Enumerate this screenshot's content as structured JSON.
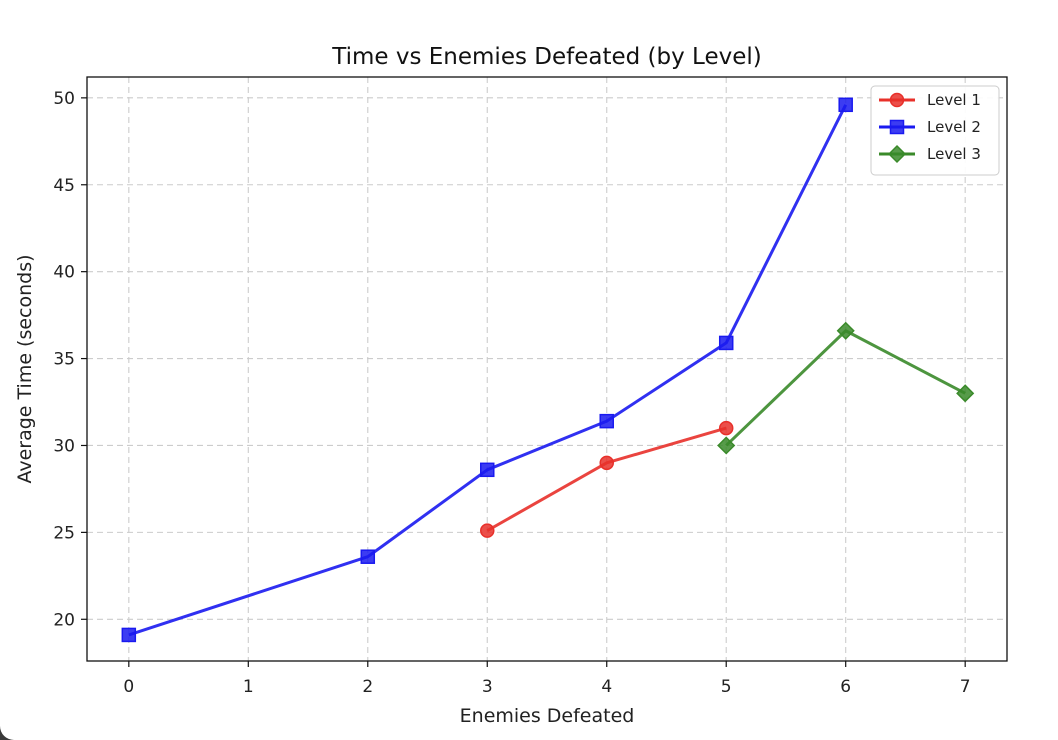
{
  "chart_data": {
    "type": "line",
    "title": "Time vs Enemies Defeated (by Level)",
    "xlabel": "Enemies Defeated",
    "ylabel": "Average Time (seconds)",
    "xlim": [
      -0.35,
      7.35
    ],
    "ylim": [
      17.6,
      51.2
    ],
    "xticks": [
      0,
      1,
      2,
      3,
      4,
      5,
      6,
      7
    ],
    "yticks": [
      20,
      25,
      30,
      35,
      40,
      45,
      50
    ],
    "grid": true,
    "legend_position": "top-right",
    "series": [
      {
        "name": "Level 1",
        "color": "#e8302a",
        "marker": "circle",
        "x": [
          3,
          4,
          5
        ],
        "y": [
          25.1,
          29.0,
          31.0
        ]
      },
      {
        "name": "Level 2",
        "color": "#1a1af0",
        "marker": "square",
        "x": [
          0,
          2,
          3,
          4,
          5,
          6
        ],
        "y": [
          19.1,
          23.6,
          28.6,
          31.4,
          35.9,
          49.6
        ]
      },
      {
        "name": "Level 3",
        "color": "#3a8a2a",
        "marker": "diamond",
        "x": [
          5,
          6,
          7
        ],
        "y": [
          30.0,
          36.6,
          33.0
        ]
      }
    ]
  }
}
